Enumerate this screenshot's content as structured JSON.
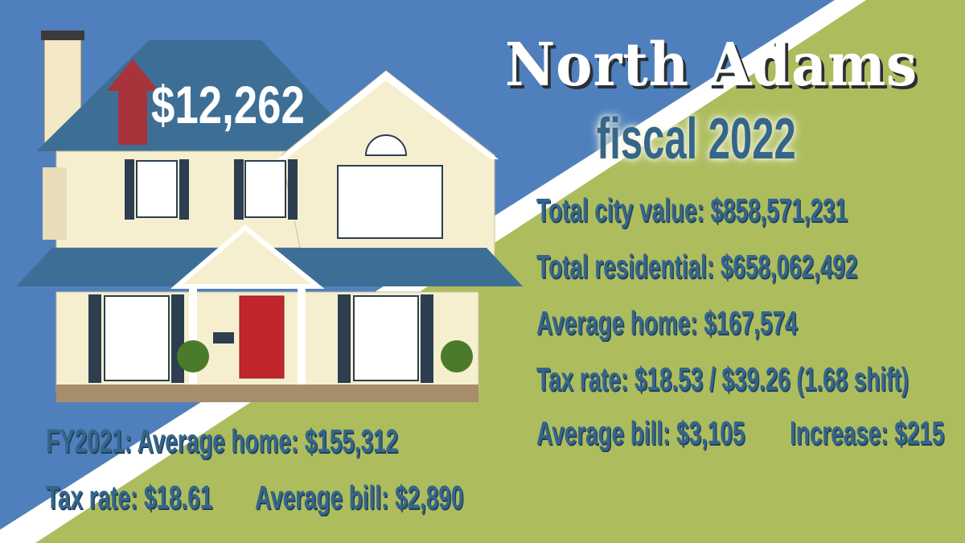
{
  "colors": {
    "blue": "#4f80bd",
    "green": "#adbd5e",
    "stripe": "#ffffff",
    "text": "#35668a",
    "arrow": "#a8333a"
  },
  "header": {
    "title": "North Adams",
    "subtitle": "fiscal 2022"
  },
  "house_graphic": {
    "arrow_icon": "arrow-up-icon",
    "increase": "$12,262"
  },
  "fy2022": {
    "total_city_value": "Total city value: $858,571,231",
    "total_residential": "Total residential: $658,062,492",
    "average_home": "Average home: $167,574",
    "tax_rate": "Tax rate: $18.53 / $39.26  (1.68 shift)",
    "average_bill": "Average bill: $3,105",
    "increase": "Increase: $215"
  },
  "fy2021": {
    "average_home": "FY2021: Average home: $155,312",
    "tax_rate": "Tax rate: $18.61",
    "average_bill": "Average bill: $2,890"
  }
}
